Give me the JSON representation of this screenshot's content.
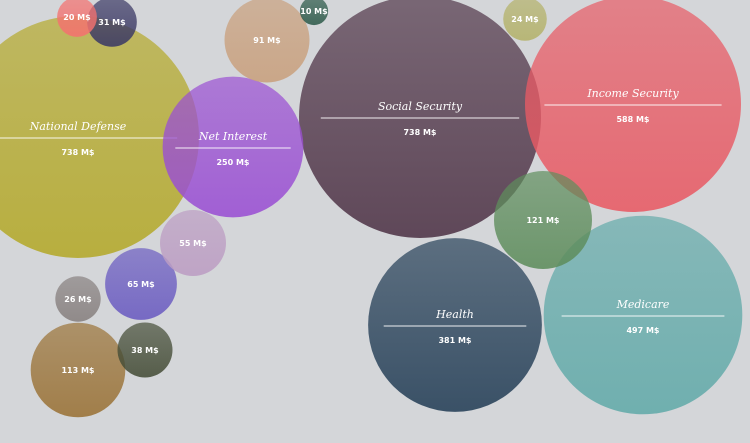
{
  "chart_data": {
    "type": "bubble",
    "unit": "M$",
    "items": [
      {
        "label": "National Defense",
        "value": 738,
        "value_text": "738 M$",
        "color": "#b4a92a"
      },
      {
        "label": "Social Security",
        "value": 738,
        "value_text": "738 M$",
        "color": "#4f3447"
      },
      {
        "label": "Income Security",
        "value": 588,
        "value_text": "588 M$",
        "color": "#e85a64"
      },
      {
        "label": "Medicare",
        "value": 497,
        "value_text": "497 M$",
        "color": "#62aaa9"
      },
      {
        "label": "Health",
        "value": 381,
        "value_text": "381 M$",
        "color": "#253f57"
      },
      {
        "label": "Net Interest",
        "value": 250,
        "value_text": "250 M$",
        "color": "#9a4fd3"
      },
      {
        "label": "",
        "value": 121,
        "value_text": "121 M$",
        "color": "#5e8d5c"
      },
      {
        "label": "",
        "value": 113,
        "value_text": "113 M$",
        "color": "#9a7236"
      },
      {
        "label": "",
        "value": 91,
        "value_text": "91 M$",
        "color": "#c9a07d"
      },
      {
        "label": "",
        "value": 65,
        "value_text": "65 M$",
        "color": "#6a5bc1"
      },
      {
        "label": "",
        "value": 55,
        "value_text": "55 M$",
        "color": "#bc9dc3"
      },
      {
        "label": "",
        "value": 38,
        "value_text": "38 M$",
        "color": "#454d37"
      },
      {
        "label": "",
        "value": 31,
        "value_text": "31 M$",
        "color": "#3b3965"
      },
      {
        "label": "",
        "value": 26,
        "value_text": "26 M$",
        "color": "#87807f"
      },
      {
        "label": "",
        "value": 24,
        "value_text": "24 M$",
        "color": "#b4b26a"
      },
      {
        "label": "",
        "value": 20,
        "value_text": "20 M$",
        "color": "#f4716f"
      },
      {
        "label": "",
        "value": 10,
        "value_text": "10 M$",
        "color": "#2e5b4b"
      }
    ]
  }
}
